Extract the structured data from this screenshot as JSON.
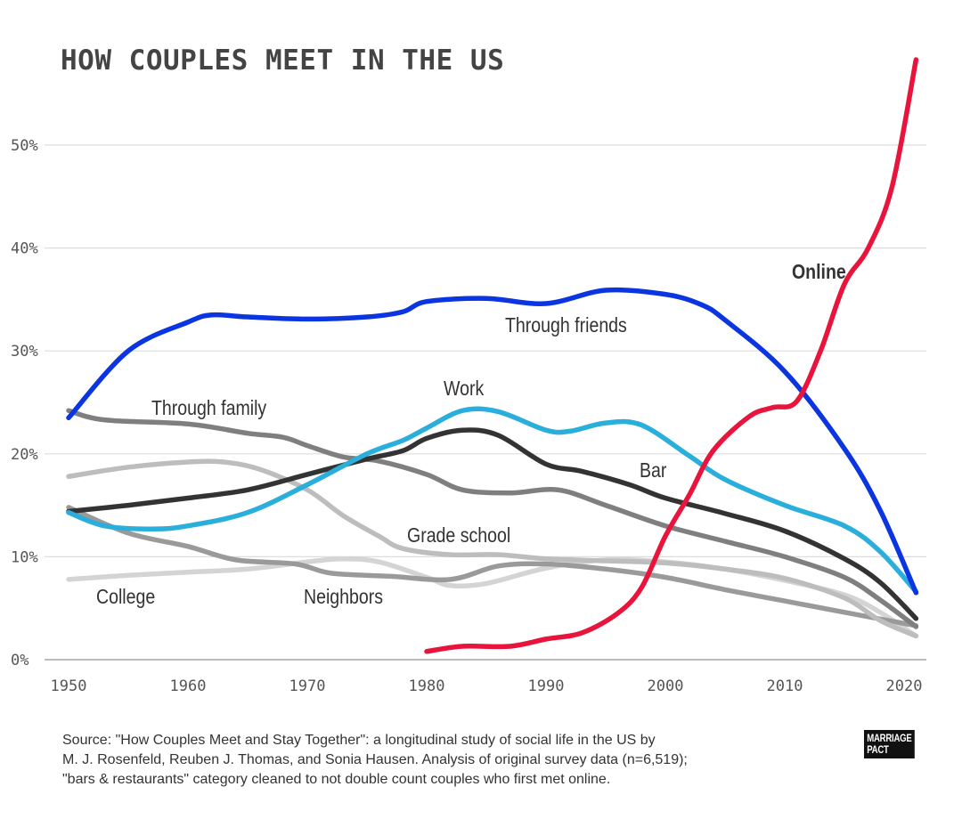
{
  "chart_data": {
    "type": "line",
    "title": "HOW COUPLES MEET IN THE US",
    "xlabel": "",
    "ylabel": "",
    "xlim": [
      1950,
      2021
    ],
    "ylim": [
      0,
      58
    ],
    "x_ticks": [
      "1950",
      "1960",
      "1970",
      "1980",
      "1990",
      "2000",
      "2010",
      "2020"
    ],
    "y_ticks": [
      "0%",
      "10%",
      "20%",
      "30%",
      "40%",
      "50%"
    ],
    "grid": "horizontal",
    "legend": "inline labels",
    "series": [
      {
        "name": "Through friends",
        "color": "#0a35e0",
        "x": [
          1950,
          1955,
          1960,
          1962,
          1965,
          1970,
          1975,
          1978,
          1980,
          1985,
          1990,
          1995,
          2000,
          2003,
          2005,
          2010,
          2015,
          2018,
          2021
        ],
        "y": [
          23.5,
          30,
          32.8,
          33.5,
          33.3,
          33.1,
          33.3,
          33.8,
          34.8,
          35.1,
          34.6,
          35.9,
          35.5,
          34.5,
          33,
          28,
          20.5,
          14.5,
          6.5
        ]
      },
      {
        "name": "Work",
        "color": "#2aaedb",
        "x": [
          1950,
          1953,
          1957,
          1960,
          1965,
          1970,
          1975,
          1978,
          1980,
          1983,
          1986,
          1990,
          1992,
          1995,
          1998,
          2002,
          2005,
          2010,
          2015,
          2018,
          2021
        ],
        "y": [
          14.3,
          13,
          12.7,
          13,
          14.3,
          17,
          20,
          21.3,
          22.5,
          24.2,
          24.1,
          22.3,
          22.2,
          23,
          22.8,
          19.8,
          17.5,
          15,
          13,
          10.5,
          6.6
        ]
      },
      {
        "name": "Bar",
        "color": "#333333",
        "x": [
          1950,
          1955,
          1960,
          1965,
          1970,
          1975,
          1978,
          1980,
          1983,
          1986,
          1990,
          1993,
          1997,
          2000,
          2005,
          2010,
          2015,
          2018,
          2021
        ],
        "y": [
          14.4,
          15,
          15.7,
          16.5,
          18,
          19.5,
          20.3,
          21.5,
          22.3,
          21.8,
          19,
          18.3,
          17,
          15.7,
          14.2,
          12.5,
          9.8,
          7.5,
          4
        ]
      },
      {
        "name": "Through family",
        "color": "#7f7f7f",
        "x": [
          1950,
          1953,
          1960,
          1965,
          1968,
          1970,
          1973,
          1976,
          1980,
          1983,
          1987,
          1991,
          1995,
          2000,
          2005,
          2010,
          2015,
          2018,
          2021
        ],
        "y": [
          24.2,
          23.3,
          22.9,
          22,
          21.6,
          20.8,
          19.7,
          19.3,
          18,
          16.5,
          16.2,
          16.5,
          15,
          13,
          11.5,
          10,
          8,
          5.8,
          3.2
        ]
      },
      {
        "name": "Grade school",
        "color": "#bdbdbd",
        "x": [
          1950,
          1955,
          1960,
          1963,
          1966,
          1970,
          1973,
          1976,
          1978,
          1982,
          1986,
          1990,
          1995,
          2000,
          2005,
          2010,
          2015,
          2018,
          2021
        ],
        "y": [
          17.8,
          18.7,
          19.2,
          19.2,
          18.5,
          16.5,
          14,
          12,
          10.8,
          10.2,
          10.2,
          9.8,
          9.6,
          9.4,
          8.8,
          7.9,
          6,
          3.8,
          2.3
        ]
      },
      {
        "name": "Neighbors",
        "color": "#9a9a9a",
        "x": [
          1950,
          1955,
          1960,
          1964,
          1969,
          1972,
          1977,
          1982,
          1986,
          1990,
          1995,
          2000,
          2005,
          2010,
          2015,
          2021
        ],
        "y": [
          14.8,
          12.3,
          11,
          9.7,
          9.3,
          8.4,
          8.1,
          7.8,
          9.1,
          9.3,
          8.8,
          8,
          6.8,
          5.7,
          4.6,
          3.3
        ]
      },
      {
        "name": "College",
        "color": "#d4d4d4",
        "x": [
          1950,
          1955,
          1960,
          1965,
          1970,
          1973,
          1976,
          1980,
          1982,
          1985,
          1990,
          1995,
          2000,
          2005,
          2010,
          2015,
          2018,
          2021
        ],
        "y": [
          7.8,
          8.2,
          8.5,
          8.8,
          9.5,
          9.8,
          9.5,
          8,
          7.2,
          7.4,
          8.9,
          9.7,
          9.5,
          8.8,
          7.7,
          6.3,
          4.6,
          2.3
        ]
      },
      {
        "name": "Online",
        "color": "#e8143c",
        "x": [
          1980,
          1983,
          1987,
          1990,
          1993,
          1996,
          1998,
          2000,
          2002,
          2004,
          2007,
          2009,
          2011,
          2013,
          2015,
          2017,
          2019,
          2021
        ],
        "y": [
          0.8,
          1.3,
          1.3,
          2,
          2.6,
          4.5,
          7,
          12,
          16,
          20.3,
          23.6,
          24.5,
          25.1,
          30,
          36.5,
          40,
          46,
          58.3
        ]
      }
    ]
  },
  "source": {
    "lines": [
      "Source: \"How Couples Meet and Stay Together\": a longitudinal study of social life in the US by",
      "M. J. Rosenfeld, Reuben J. Thomas, and Sonia Hausen. Analysis of original survey data (n=6,519);",
      "\"bars & restaurants\" category cleaned to not double count couples who first met online."
    ]
  },
  "logo": {
    "line1": "MARRIAGE",
    "line2": "PACT"
  }
}
